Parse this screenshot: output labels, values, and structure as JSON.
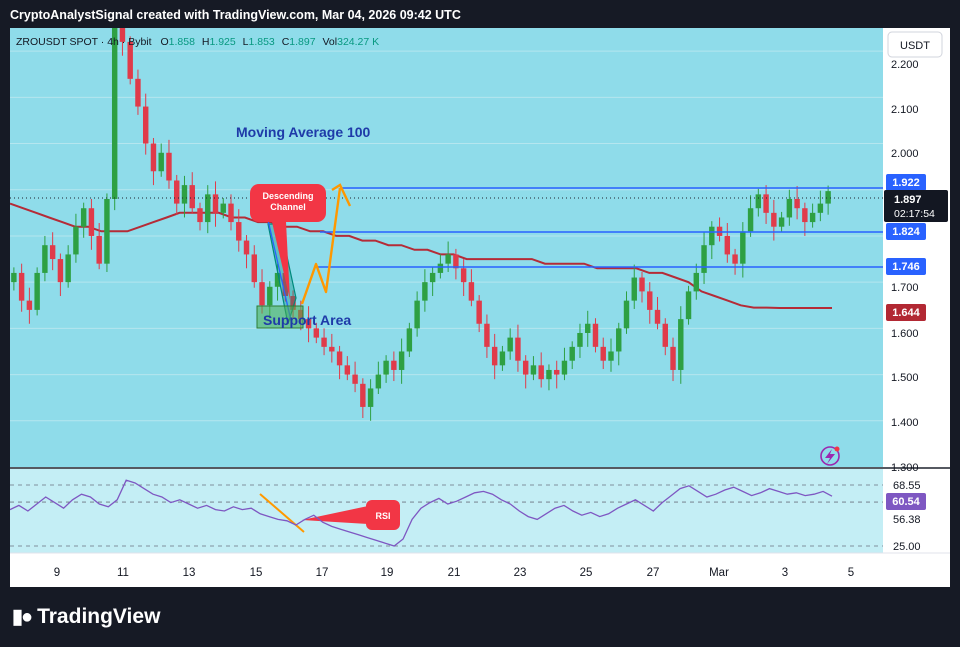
{
  "header": {
    "credit": "CryptoAnalystSignal created with TradingView.com, Mar 04, 2026 09:42 UTC"
  },
  "legend": {
    "symbol": "ZROUSDT SPOT · 4h · Bybit",
    "o_label": "O",
    "o": "1.858",
    "h_label": "H",
    "h": "1.925",
    "l_label": "L",
    "l": "1.853",
    "c_label": "C",
    "c": "1.897",
    "vol_label": "Vol",
    "vol": "324.27 K"
  },
  "currency_button": "USDT",
  "annotations": {
    "moving_average": "Moving Average 100",
    "descending_channel": "Descending Channel",
    "support_area": "Support Area",
    "rsi": "RSI"
  },
  "price_axis": {
    "ticks": [
      "2.200",
      "2.100",
      "2.000",
      "1.700",
      "1.600",
      "1.500",
      "1.400",
      "1.300"
    ],
    "level_labels": [
      "1.922",
      "1.824",
      "1.746"
    ],
    "last_price": "1.897",
    "countdown": "02:17:54",
    "ma_value": "1.644"
  },
  "rsi_axis": {
    "ticks": [
      "68.55",
      "56.38",
      "25.00"
    ],
    "current": "60.54"
  },
  "time_axis": [
    "9",
    "11",
    "13",
    "15",
    "17",
    "19",
    "21",
    "23",
    "25",
    "27",
    "Mar",
    "3",
    "5"
  ],
  "footer": {
    "brand": "TradingView"
  },
  "colors": {
    "background": "#161a25",
    "panel": "#8fdcea",
    "rsi_panel": "#c4eef5",
    "up": "#2ea043",
    "down": "#e03b4a",
    "level_line": "#2962ff",
    "ma_line": "#b52b37",
    "rsi_line": "#7e57c2",
    "note": "#f23645",
    "arrow": "#ff9800"
  },
  "chart_data": {
    "type": "candlestick",
    "timeframe": "4h",
    "ylim": [
      1.3,
      2.25
    ],
    "levels": [
      1.922,
      1.824,
      1.746
    ],
    "last_price": 1.897,
    "ma100_last": 1.644,
    "closes": [
      1.72,
      1.66,
      1.64,
      1.72,
      1.78,
      1.75,
      1.7,
      1.76,
      1.82,
      1.86,
      1.8,
      1.74,
      1.88,
      2.26,
      2.22,
      2.14,
      2.08,
      2.0,
      1.94,
      1.98,
      1.92,
      1.87,
      1.91,
      1.86,
      1.83,
      1.89,
      1.85,
      1.87,
      1.83,
      1.79,
      1.76,
      1.7,
      1.65,
      1.69,
      1.72,
      1.67,
      1.64,
      1.62,
      1.6,
      1.58,
      1.56,
      1.55,
      1.52,
      1.5,
      1.48,
      1.43,
      1.47,
      1.5,
      1.53,
      1.51,
      1.55,
      1.6,
      1.66,
      1.7,
      1.72,
      1.74,
      1.76,
      1.73,
      1.7,
      1.66,
      1.61,
      1.56,
      1.52,
      1.55,
      1.58,
      1.53,
      1.5,
      1.52,
      1.49,
      1.51,
      1.5,
      1.53,
      1.56,
      1.59,
      1.61,
      1.56,
      1.53,
      1.55,
      1.6,
      1.66,
      1.71,
      1.68,
      1.64,
      1.61,
      1.56,
      1.51,
      1.62,
      1.68,
      1.72,
      1.78,
      1.82,
      1.8,
      1.76,
      1.74,
      1.81,
      1.86,
      1.89,
      1.85,
      1.82,
      1.84,
      1.88,
      1.86,
      1.83,
      1.85,
      1.87,
      1.897
    ],
    "ma100": [
      1.87,
      1.86,
      1.85,
      1.84,
      1.83,
      1.82,
      1.82,
      1.81,
      1.81,
      1.81,
      1.82,
      1.83,
      1.84,
      1.85,
      1.85,
      1.85,
      1.85,
      1.84,
      1.84,
      1.83,
      1.83,
      1.82,
      1.82,
      1.81,
      1.81,
      1.8,
      1.8,
      1.79,
      1.79,
      1.78,
      1.78,
      1.77,
      1.77,
      1.76,
      1.76,
      1.75,
      1.75,
      1.75,
      1.75,
      1.75,
      1.75,
      1.74,
      1.74,
      1.74,
      1.74,
      1.73,
      1.73,
      1.73,
      1.73,
      1.72,
      1.72,
      1.71,
      1.7,
      1.68,
      1.67,
      1.66,
      1.65,
      1.645,
      1.645,
      1.644,
      1.644,
      1.644,
      1.644,
      1.644
    ],
    "rsi": [
      51,
      54,
      50,
      55,
      60,
      56,
      52,
      58,
      62,
      60,
      55,
      53,
      58,
      72,
      70,
      66,
      62,
      60,
      56,
      58,
      55,
      52,
      54,
      51,
      50,
      53,
      51,
      52,
      48,
      46,
      44,
      43,
      40,
      44,
      47,
      42,
      39,
      37,
      35,
      33,
      31,
      29,
      27,
      25,
      30,
      44,
      52,
      56,
      59,
      55,
      57,
      60,
      63,
      64,
      62,
      58,
      55,
      50,
      46,
      44,
      48,
      52,
      54,
      50,
      47,
      49,
      46,
      48,
      52,
      55,
      58,
      54,
      50,
      56,
      61,
      66,
      68,
      64,
      60,
      62,
      65,
      67,
      64,
      61,
      63,
      66,
      64,
      62,
      63,
      61,
      62,
      64,
      60.54
    ]
  }
}
